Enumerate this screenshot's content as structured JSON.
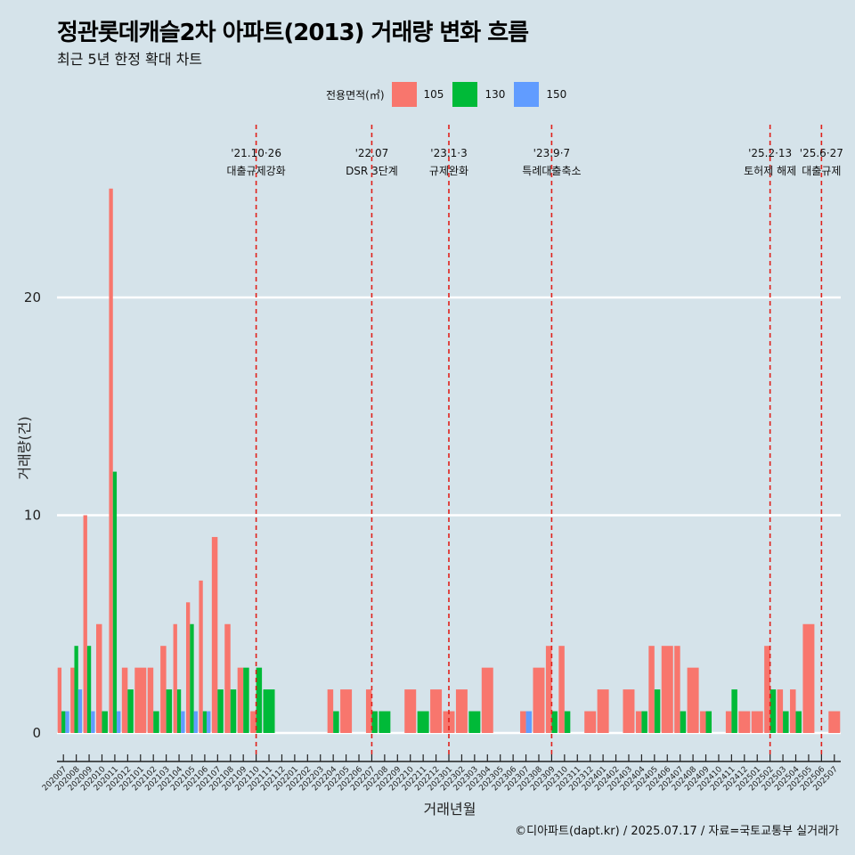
{
  "title": "정관롯데캐슬2차 아파트(2013) 거래량 변화 흐름",
  "subtitle": "최근 5년 한정 확대 차트",
  "caption": "©디아파트(dapt.kr) / 2025.07.17 / 자료=국토교통부 실거래가",
  "colors": {
    "s105": "#f8766d",
    "s130": "#00ba38",
    "s150": "#619cff",
    "event": "#e0201a"
  },
  "legend": {
    "title": "전용면적(㎡)",
    "items": [
      {
        "label": "105",
        "color": "#f8766d"
      },
      {
        "label": "130",
        "color": "#00ba38"
      },
      {
        "label": "150",
        "color": "#619cff"
      }
    ]
  },
  "chart_data": {
    "type": "bar",
    "xlabel": "거래년월",
    "ylabel": "거래량(건)",
    "ylim": [
      -1,
      25
    ],
    "yticks": [
      0,
      10,
      20
    ],
    "grid": true,
    "legend_position": "top",
    "months": [
      "202007",
      "202008",
      "202009",
      "202010",
      "202011",
      "202012",
      "202101",
      "202102",
      "202103",
      "202104",
      "202105",
      "202106",
      "202107",
      "202108",
      "202109",
      "202110",
      "202111",
      "202112",
      "202201",
      "202202",
      "202203",
      "202204",
      "202205",
      "202206",
      "202207",
      "202208",
      "202209",
      "202210",
      "202211",
      "202212",
      "202301",
      "202302",
      "202303",
      "202304",
      "202305",
      "202306",
      "202307",
      "202308",
      "202309",
      "202310",
      "202311",
      "202312",
      "202401",
      "202402",
      "202403",
      "202404",
      "202405",
      "202406",
      "202407",
      "202408",
      "202409",
      "202410",
      "202411",
      "202412",
      "202501",
      "202502",
      "202503",
      "202504",
      "202505",
      "202506",
      "202507"
    ],
    "series": [
      {
        "name": "105",
        "values": [
          3,
          3,
          10,
          5,
          25,
          3,
          3,
          3,
          4,
          5,
          6,
          7,
          9,
          5,
          3,
          1,
          0,
          0,
          0,
          0,
          0,
          2,
          2,
          0,
          2,
          0,
          0,
          2,
          0,
          2,
          1,
          2,
          0,
          3,
          0,
          0,
          1,
          3,
          4,
          4,
          0,
          1,
          2,
          0,
          2,
          1,
          4,
          4,
          4,
          3,
          1,
          0,
          1,
          1,
          1,
          4,
          2,
          2,
          5,
          0,
          1
        ]
      },
      {
        "name": "130",
        "values": [
          1,
          4,
          4,
          1,
          12,
          2,
          0,
          1,
          2,
          2,
          5,
          1,
          2,
          2,
          3,
          3,
          2,
          0,
          0,
          0,
          0,
          1,
          0,
          0,
          1,
          1,
          0,
          0,
          1,
          0,
          0,
          0,
          1,
          0,
          0,
          0,
          0,
          0,
          1,
          1,
          0,
          0,
          0,
          0,
          0,
          1,
          2,
          0,
          1,
          0,
          1,
          0,
          2,
          0,
          0,
          2,
          1,
          1,
          0,
          0,
          0
        ]
      },
      {
        "name": "150",
        "values": [
          1,
          2,
          1,
          0,
          1,
          0,
          0,
          0,
          0,
          1,
          1,
          1,
          0,
          0,
          0,
          0,
          0,
          0,
          0,
          0,
          0,
          0,
          0,
          0,
          0,
          0,
          0,
          0,
          0,
          0,
          0,
          0,
          0,
          0,
          0,
          0,
          1,
          0,
          0,
          0,
          0,
          0,
          0,
          0,
          0,
          0,
          0,
          0,
          0,
          0,
          0,
          0,
          0,
          0,
          0,
          0,
          0,
          0,
          0,
          0,
          0
        ]
      }
    ],
    "events": [
      {
        "month": "202110",
        "date": "'21.10·26",
        "label": "대출규제강화"
      },
      {
        "month": "202207",
        "date": "'22.07",
        "label": "DSR 3단계"
      },
      {
        "month": "202301",
        "date": "'23.1·3",
        "label": "규제완화"
      },
      {
        "month": "202309",
        "date": "'23.9·7",
        "label": "특례대출축소"
      },
      {
        "month": "202502",
        "date": "'25.2·13",
        "label": "토허제 해제"
      },
      {
        "month": "202506",
        "date": "'25.6·27",
        "label": "대출규제"
      }
    ]
  }
}
